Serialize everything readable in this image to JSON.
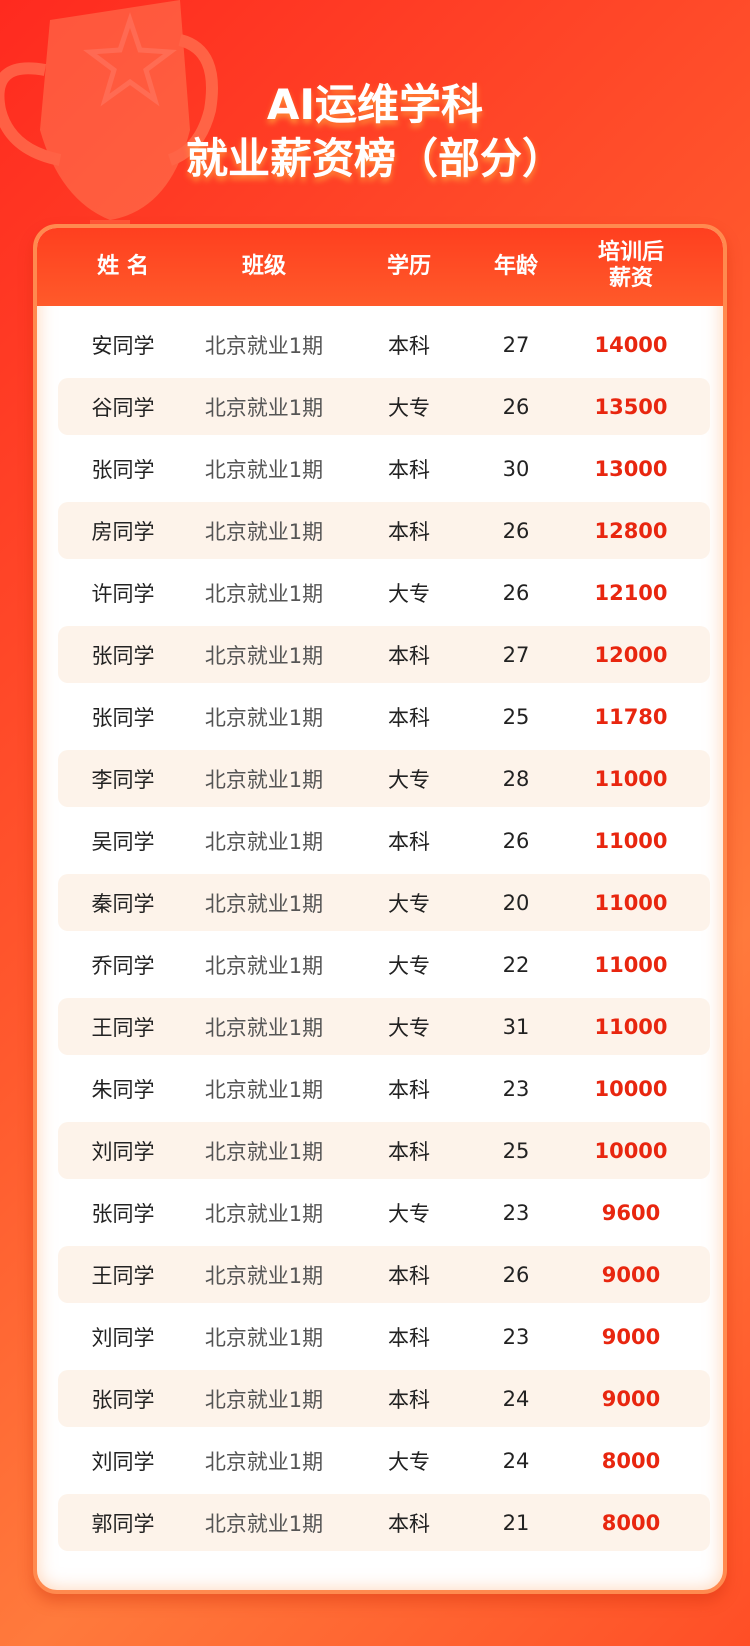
{
  "title": {
    "line1": "AI运维学科",
    "line2": "就业薪资榜（部分）"
  },
  "colors": {
    "accent": "#e8260f",
    "header": "#ff4a24",
    "stripe": "#fdf3ea"
  },
  "headers": {
    "name": "姓 名",
    "class": "班级",
    "education": "学历",
    "age": "年龄",
    "salary_line1": "培训后",
    "salary_line2": "薪资"
  },
  "rows": [
    {
      "name": "安同学",
      "class": "北京就业1期",
      "education": "本科",
      "age": "27",
      "salary": "14000"
    },
    {
      "name": "谷同学",
      "class": "北京就业1期",
      "education": "大专",
      "age": "26",
      "salary": "13500"
    },
    {
      "name": "张同学",
      "class": "北京就业1期",
      "education": "本科",
      "age": "30",
      "salary": "13000"
    },
    {
      "name": "房同学",
      "class": "北京就业1期",
      "education": "本科",
      "age": "26",
      "salary": "12800"
    },
    {
      "name": "许同学",
      "class": "北京就业1期",
      "education": "大专",
      "age": "26",
      "salary": "12100"
    },
    {
      "name": "张同学",
      "class": "北京就业1期",
      "education": "本科",
      "age": "27",
      "salary": "12000"
    },
    {
      "name": "张同学",
      "class": "北京就业1期",
      "education": "本科",
      "age": "25",
      "salary": "11780"
    },
    {
      "name": "李同学",
      "class": "北京就业1期",
      "education": "大专",
      "age": "28",
      "salary": "11000"
    },
    {
      "name": "吴同学",
      "class": "北京就业1期",
      "education": "本科",
      "age": "26",
      "salary": "11000"
    },
    {
      "name": "秦同学",
      "class": "北京就业1期",
      "education": "大专",
      "age": "20",
      "salary": "11000"
    },
    {
      "name": "乔同学",
      "class": "北京就业1期",
      "education": "大专",
      "age": "22",
      "salary": "11000"
    },
    {
      "name": "王同学",
      "class": "北京就业1期",
      "education": "大专",
      "age": "31",
      "salary": "11000"
    },
    {
      "name": "朱同学",
      "class": "北京就业1期",
      "education": "本科",
      "age": "23",
      "salary": "10000"
    },
    {
      "name": "刘同学",
      "class": "北京就业1期",
      "education": "本科",
      "age": "25",
      "salary": "10000"
    },
    {
      "name": "张同学",
      "class": "北京就业1期",
      "education": "大专",
      "age": "23",
      "salary": "9600"
    },
    {
      "name": "王同学",
      "class": "北京就业1期",
      "education": "本科",
      "age": "26",
      "salary": "9000"
    },
    {
      "name": "刘同学",
      "class": "北京就业1期",
      "education": "本科",
      "age": "23",
      "salary": "9000"
    },
    {
      "name": "张同学",
      "class": "北京就业1期",
      "education": "本科",
      "age": "24",
      "salary": "9000"
    },
    {
      "name": "刘同学",
      "class": "北京就业1期",
      "education": "大专",
      "age": "24",
      "salary": "8000"
    },
    {
      "name": "郭同学",
      "class": "北京就业1期",
      "education": "本科",
      "age": "21",
      "salary": "8000"
    }
  ]
}
